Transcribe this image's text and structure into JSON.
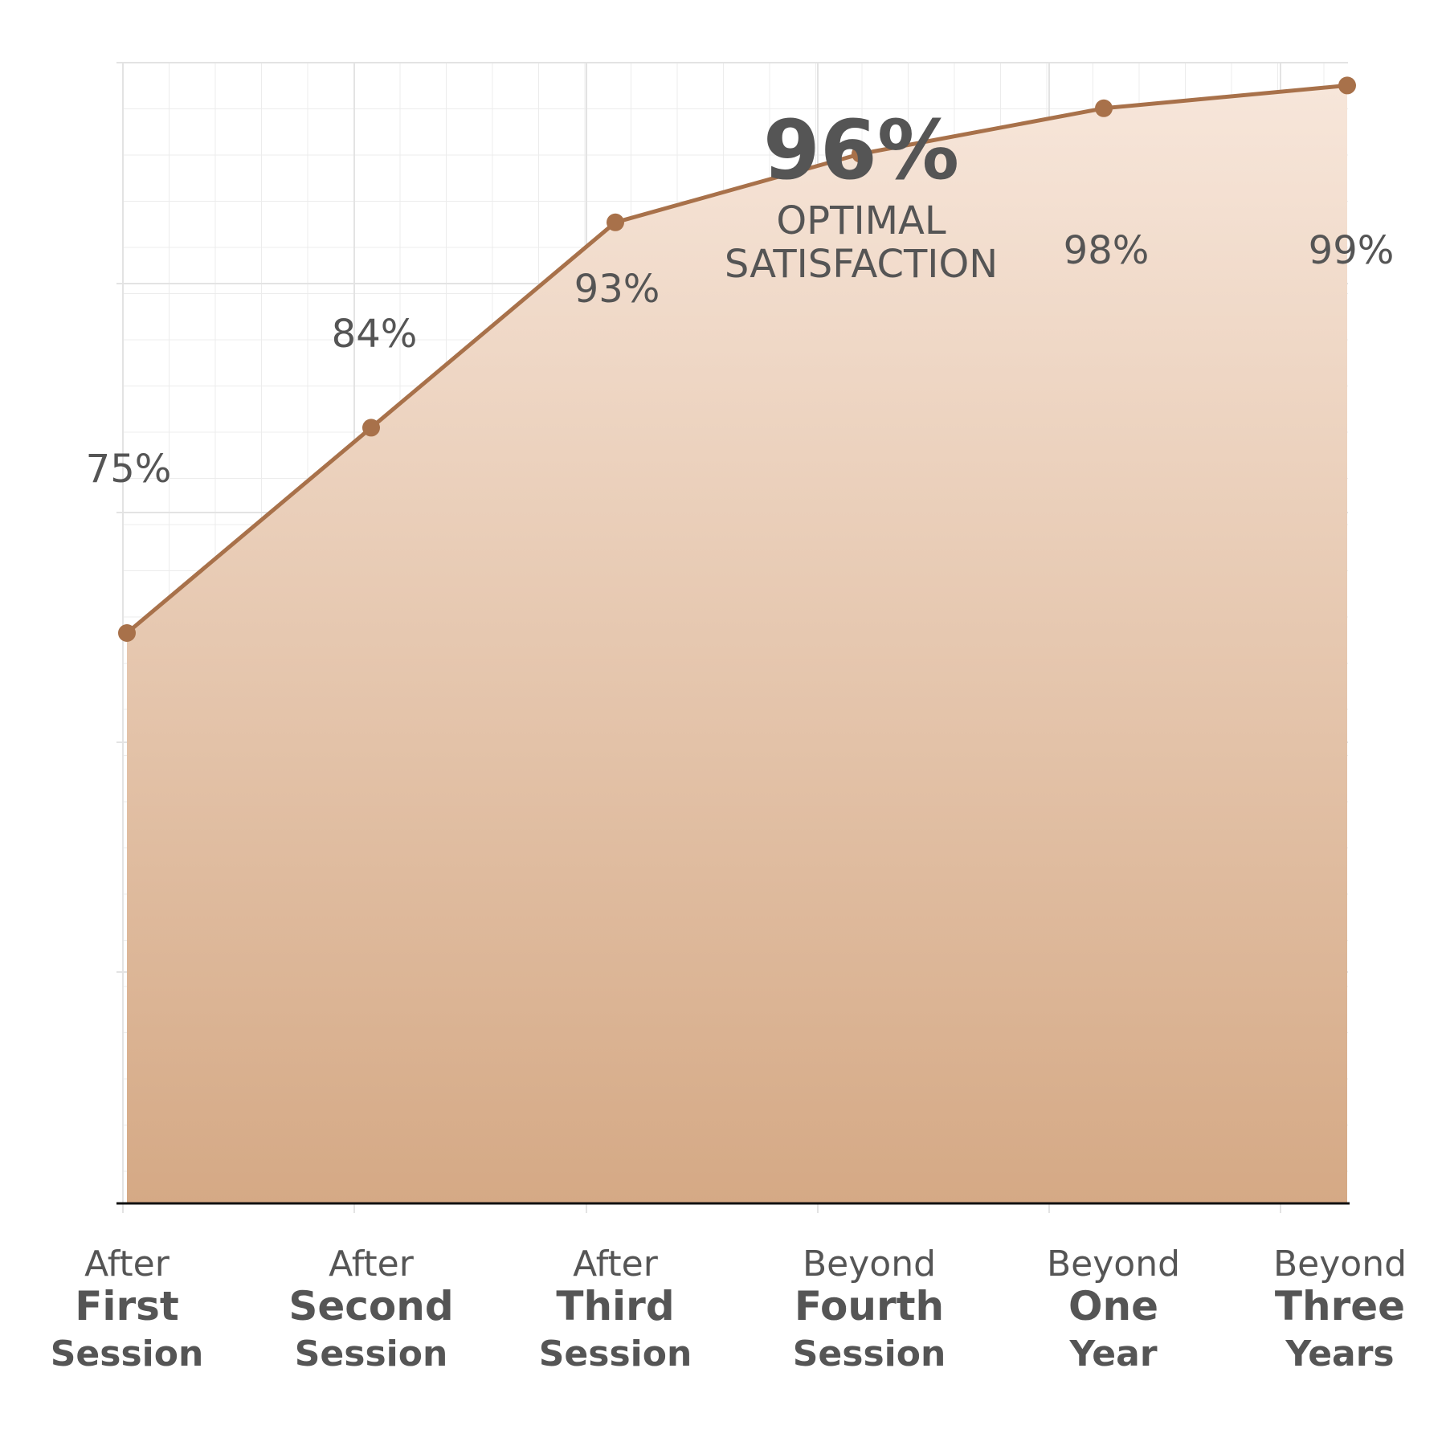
{
  "headline": {
    "value": "96%",
    "line1": "OPTIMAL",
    "line2": "SATISFACTION"
  },
  "colors": {
    "line": "#a8714a",
    "marker": "#a8714a",
    "fill_top": "#f7e6da",
    "fill_bottom": "#d5a985",
    "text": "#555555",
    "grid": "#ececec",
    "axis": "#111111"
  },
  "chart_data": {
    "type": "area",
    "title": "",
    "xlabel": "",
    "ylabel": "",
    "ylim": [
      50,
      100
    ],
    "grid": true,
    "categories": [
      {
        "pre": "After",
        "main": "First",
        "sub": "Session"
      },
      {
        "pre": "After",
        "main": "Second",
        "sub": "Session"
      },
      {
        "pre": "After",
        "main": "Third",
        "sub": "Session"
      },
      {
        "pre": "Beyond",
        "main": "Fourth",
        "sub": "Session"
      },
      {
        "pre": "Beyond",
        "main": "One",
        "sub": "Year"
      },
      {
        "pre": "Beyond",
        "main": "Three",
        "sub": "Years"
      }
    ],
    "values": [
      75,
      84,
      93,
      96,
      98,
      99
    ],
    "data_labels": [
      "75%",
      "84%",
      "93%",
      "",
      "98%",
      "99%"
    ]
  }
}
